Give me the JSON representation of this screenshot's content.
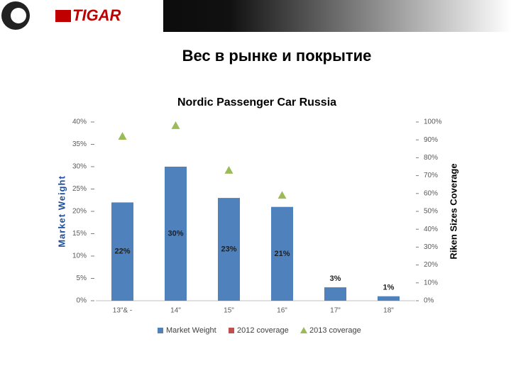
{
  "logo": "TIGAR",
  "slide_title": "Вес в рынке и покрытие",
  "chart_data": {
    "type": "bar",
    "title": "Nordic Passenger Car Russia",
    "y_label": "Market Weight",
    "y2_label": "Riken Sizes Coverage",
    "categories": [
      "13\"& -",
      "14\"",
      "15\"",
      "16\"",
      "17\"",
      "18\""
    ],
    "series": [
      {
        "name": "Market Weight",
        "type": "bar",
        "color": "#4f81bd",
        "values": [
          22,
          30,
          23,
          21,
          3,
          1
        ],
        "value_labels": [
          "22%",
          "30%",
          "23%",
          "21%",
          "3%",
          "1%"
        ]
      },
      {
        "name": "2012 coverage",
        "type": "scatter",
        "axis": "y2",
        "color": "#c0504d",
        "values": [
          null,
          null,
          null,
          null,
          null,
          null
        ]
      },
      {
        "name": "2013 coverage",
        "type": "scatter",
        "axis": "y2",
        "color": "#9bbb59",
        "values": [
          92,
          98,
          73,
          59,
          null,
          null
        ]
      }
    ],
    "ylim": [
      0,
      40
    ],
    "yticks": [
      {
        "value": 0,
        "label": "0%"
      },
      {
        "value": 5,
        "label": "5%"
      },
      {
        "value": 10,
        "label": "10%"
      },
      {
        "value": 15,
        "label": "15%"
      },
      {
        "value": 20,
        "label": "20%"
      },
      {
        "value": 25,
        "label": "25%"
      },
      {
        "value": 30,
        "label": "30%"
      },
      {
        "value": 35,
        "label": "35%"
      },
      {
        "value": 40,
        "label": "40%"
      }
    ],
    "y2lim": [
      0,
      100
    ],
    "y2ticks": [
      {
        "value": 0,
        "label": "0%"
      },
      {
        "value": 10,
        "label": "10%"
      },
      {
        "value": 20,
        "label": "20%"
      },
      {
        "value": 30,
        "label": "30%"
      },
      {
        "value": 40,
        "label": "40%"
      },
      {
        "value": 50,
        "label": "50%"
      },
      {
        "value": 60,
        "label": "60%"
      },
      {
        "value": 70,
        "label": "70%"
      },
      {
        "value": 80,
        "label": "80%"
      },
      {
        "value": 90,
        "label": "90%"
      },
      {
        "value": 100,
        "label": "100%"
      }
    ],
    "grid": false,
    "legend": "bottom"
  }
}
